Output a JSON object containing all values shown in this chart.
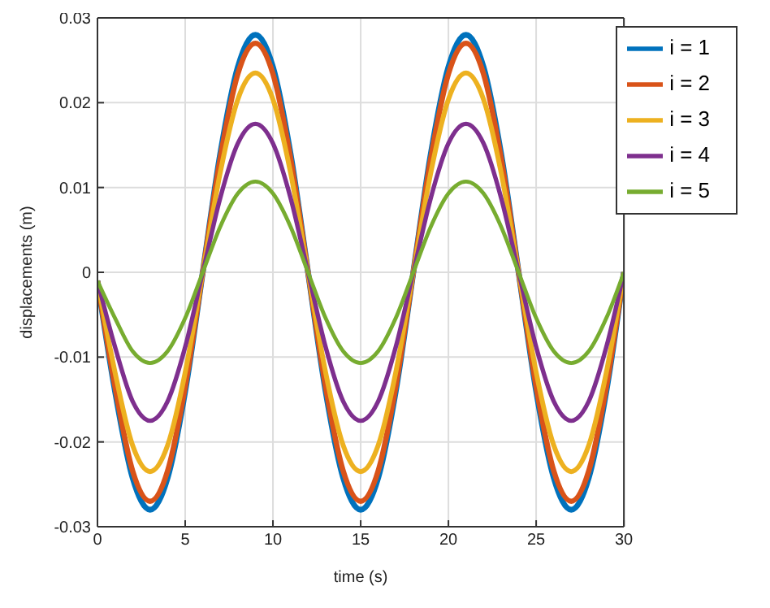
{
  "chart_data": {
    "type": "line",
    "xlabel": "time (s)",
    "ylabel": "displacements (m)",
    "x": [
      0,
      1,
      2,
      3,
      4,
      5,
      6,
      7,
      8,
      9,
      10,
      11,
      12,
      13,
      14,
      15,
      16,
      17,
      18,
      19,
      20,
      21,
      22,
      23,
      24,
      25,
      26,
      27,
      28,
      29,
      30
    ],
    "series": [
      {
        "name": "i = 1",
        "color": "#0072bd",
        "values": [
          -0.001,
          -0.014,
          -0.0242,
          -0.028,
          -0.0242,
          -0.014,
          0,
          0.014,
          0.0242,
          0.028,
          0.0242,
          0.014,
          0,
          -0.014,
          -0.0242,
          -0.028,
          -0.0242,
          -0.014,
          0,
          0.014,
          0.0242,
          0.028,
          0.0242,
          0.014,
          0,
          -0.014,
          -0.0242,
          -0.028,
          -0.0242,
          -0.014,
          0
        ]
      },
      {
        "name": "i = 2",
        "color": "#d95319",
        "values": [
          -0.001,
          -0.0135,
          -0.0234,
          -0.027,
          -0.0234,
          -0.0135,
          0,
          0.0135,
          0.0234,
          0.027,
          0.0234,
          0.0135,
          0,
          -0.0135,
          -0.0234,
          -0.027,
          -0.0234,
          -0.0135,
          0,
          0.0135,
          0.0234,
          0.027,
          0.0234,
          0.0135,
          0,
          -0.0135,
          -0.0234,
          -0.027,
          -0.0234,
          -0.0135,
          0
        ]
      },
      {
        "name": "i = 3",
        "color": "#edb120",
        "values": [
          -0.001,
          -0.0118,
          -0.0204,
          -0.0235,
          -0.0204,
          -0.0118,
          0,
          0.0118,
          0.0204,
          0.0235,
          0.0204,
          0.0118,
          0,
          -0.0118,
          -0.0204,
          -0.0235,
          -0.0204,
          -0.0118,
          0,
          0.0118,
          0.0204,
          0.0235,
          0.0204,
          0.0118,
          0,
          -0.0118,
          -0.0204,
          -0.0235,
          -0.0204,
          -0.0118,
          0
        ]
      },
      {
        "name": "i = 4",
        "color": "#7e2f8e",
        "values": [
          -0.001,
          -0.0088,
          -0.0152,
          -0.0175,
          -0.0152,
          -0.0088,
          0,
          0.0088,
          0.0152,
          0.0175,
          0.0152,
          0.0088,
          0,
          -0.0088,
          -0.0152,
          -0.0175,
          -0.0152,
          -0.0088,
          0,
          0.0088,
          0.0152,
          0.0175,
          0.0152,
          0.0088,
          0,
          -0.0088,
          -0.0152,
          -0.0175,
          -0.0152,
          -0.0088,
          0
        ]
      },
      {
        "name": "i = 5",
        "color": "#77ac30",
        "values": [
          -0.001,
          -0.0054,
          -0.0093,
          -0.0107,
          -0.0093,
          -0.0054,
          0,
          0.0054,
          0.0093,
          0.0107,
          0.0093,
          0.0054,
          0,
          -0.0054,
          -0.0093,
          -0.0107,
          -0.0093,
          -0.0054,
          0,
          0.0054,
          0.0093,
          0.0107,
          0.0093,
          0.0054,
          0,
          -0.0054,
          -0.0093,
          -0.0107,
          -0.0093,
          -0.0054,
          0
        ]
      }
    ],
    "xlim": [
      0,
      30
    ],
    "xticks": [
      0,
      5,
      10,
      15,
      20,
      25,
      30
    ],
    "ylim": [
      -0.03,
      0.03
    ],
    "yticks": [
      -0.03,
      -0.02,
      -0.01,
      0,
      0.01,
      0.02,
      0.03
    ],
    "grid": true,
    "legend": "top right",
    "marker": "none",
    "line_style": "solid"
  }
}
